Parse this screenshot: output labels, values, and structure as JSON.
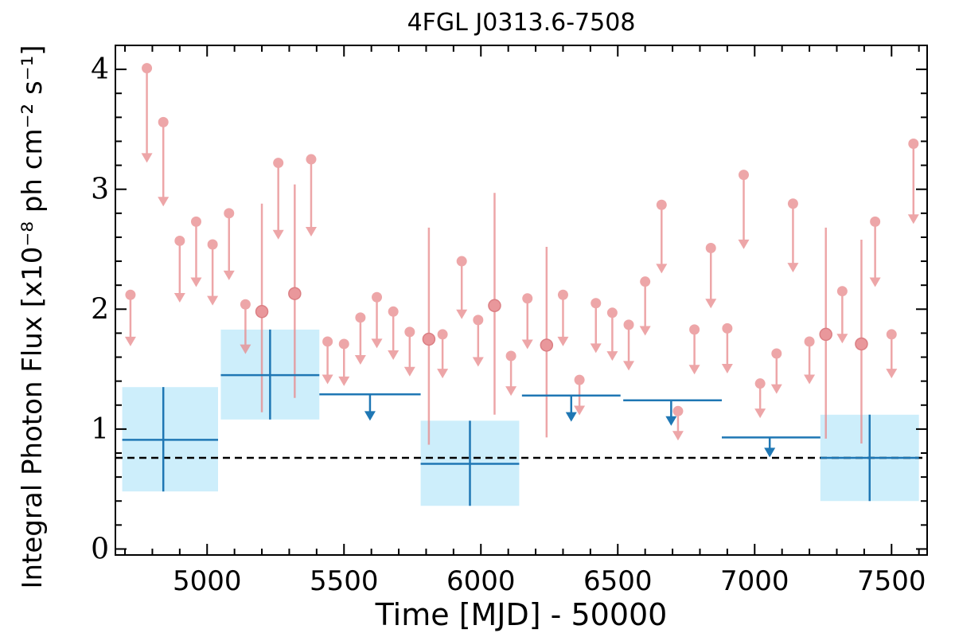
{
  "chart_data": {
    "type": "scatter",
    "title": "4FGL J0313.6-7508",
    "xlabel": "Time [MJD] - 50000",
    "ylabel": "Integral Photon Flux [x10⁻⁸ ph cm⁻² s⁻¹]",
    "xlim": [
      4665,
      7630
    ],
    "ylim": [
      -0.05,
      4.2
    ],
    "xticks": [
      5000,
      5500,
      6000,
      6500,
      7000,
      7500
    ],
    "yticks": [
      0,
      1,
      2,
      3,
      4
    ],
    "xtick_labels": [
      "5000",
      "5500",
      "6000",
      "6500",
      "7000",
      "7500"
    ],
    "ytick_labels": [
      "0",
      "1",
      "2",
      "3",
      "4"
    ],
    "grid": false,
    "reference_line": {
      "y": 0.76,
      "style": "dashed",
      "color": "#000000"
    },
    "colors": {
      "fine": "#e8898c",
      "coarse": "#1f77b4",
      "coarse_band": "#cdeefb"
    },
    "series": [
      {
        "bin": "fine",
        "upper_limits": [
          {
            "x": 4720,
            "y": 2.12
          },
          {
            "x": 4780,
            "y": 4.01
          },
          {
            "x": 4840,
            "y": 3.56
          },
          {
            "x": 4900,
            "y": 2.57
          },
          {
            "x": 4960,
            "y": 2.73
          },
          {
            "x": 5020,
            "y": 2.54
          },
          {
            "x": 5080,
            "y": 2.8
          },
          {
            "x": 5140,
            "y": 2.04
          },
          {
            "x": 5260,
            "y": 3.22
          },
          {
            "x": 5380,
            "y": 3.25
          },
          {
            "x": 5440,
            "y": 1.73
          },
          {
            "x": 5500,
            "y": 1.71
          },
          {
            "x": 5560,
            "y": 1.93
          },
          {
            "x": 5620,
            "y": 2.1
          },
          {
            "x": 5680,
            "y": 1.98
          },
          {
            "x": 5740,
            "y": 1.81
          },
          {
            "x": 5860,
            "y": 1.79
          },
          {
            "x": 5930,
            "y": 2.4
          },
          {
            "x": 5990,
            "y": 1.91
          },
          {
            "x": 6110,
            "y": 1.61
          },
          {
            "x": 6170,
            "y": 2.09
          },
          {
            "x": 6300,
            "y": 2.12
          },
          {
            "x": 6360,
            "y": 1.41
          },
          {
            "x": 6420,
            "y": 2.05
          },
          {
            "x": 6480,
            "y": 1.97
          },
          {
            "x": 6540,
            "y": 1.87
          },
          {
            "x": 6600,
            "y": 2.23
          },
          {
            "x": 6660,
            "y": 2.87
          },
          {
            "x": 6720,
            "y": 1.15
          },
          {
            "x": 6780,
            "y": 1.83
          },
          {
            "x": 6840,
            "y": 2.51
          },
          {
            "x": 6900,
            "y": 1.84
          },
          {
            "x": 6960,
            "y": 3.12
          },
          {
            "x": 7020,
            "y": 1.38
          },
          {
            "x": 7080,
            "y": 1.63
          },
          {
            "x": 7140,
            "y": 2.88
          },
          {
            "x": 7200,
            "y": 1.73
          },
          {
            "x": 7320,
            "y": 2.15
          },
          {
            "x": 7440,
            "y": 2.73
          },
          {
            "x": 7500,
            "y": 1.79
          },
          {
            "x": 7580,
            "y": 3.38
          }
        ],
        "detections": [
          {
            "x": 5200,
            "y": 1.98,
            "ylo": 1.14,
            "yhi": 2.88
          },
          {
            "x": 5320,
            "y": 2.13,
            "ylo": 1.26,
            "yhi": 3.04
          },
          {
            "x": 5810,
            "y": 1.75,
            "ylo": 0.87,
            "yhi": 2.68
          },
          {
            "x": 6050,
            "y": 2.03,
            "ylo": 1.12,
            "yhi": 2.97
          },
          {
            "x": 6240,
            "y": 1.7,
            "ylo": 0.93,
            "yhi": 2.52
          },
          {
            "x": 7260,
            "y": 1.79,
            "ylo": 0.92,
            "yhi": 2.68
          },
          {
            "x": 7390,
            "y": 1.71,
            "ylo": 0.88,
            "yhi": 2.58
          }
        ]
      },
      {
        "bin": "coarse",
        "detections": [
          {
            "xmin": 4690,
            "xmax": 5040,
            "y": 0.91,
            "ylo": 0.48,
            "yhi": 1.35,
            "xc": 4840
          },
          {
            "xmin": 5050,
            "xmax": 5410,
            "y": 1.45,
            "ylo": 1.08,
            "yhi": 1.83,
            "xc": 5230
          },
          {
            "xmin": 5780,
            "xmax": 6140,
            "y": 0.71,
            "ylo": 0.36,
            "yhi": 1.07,
            "xc": 5960
          },
          {
            "xmin": 7240,
            "xmax": 7600,
            "y": 0.76,
            "ylo": 0.4,
            "yhi": 1.12,
            "xc": 7420
          }
        ],
        "upper_limits": [
          {
            "xmin": 5410,
            "xmax": 5780,
            "y": 1.29,
            "xc": 5595
          },
          {
            "xmin": 6150,
            "xmax": 6510,
            "y": 1.28,
            "xc": 6330
          },
          {
            "xmin": 6520,
            "xmax": 6880,
            "y": 1.24,
            "xc": 6695
          },
          {
            "xmin": 6880,
            "xmax": 7240,
            "y": 0.93,
            "xc": 7055
          }
        ]
      }
    ]
  }
}
